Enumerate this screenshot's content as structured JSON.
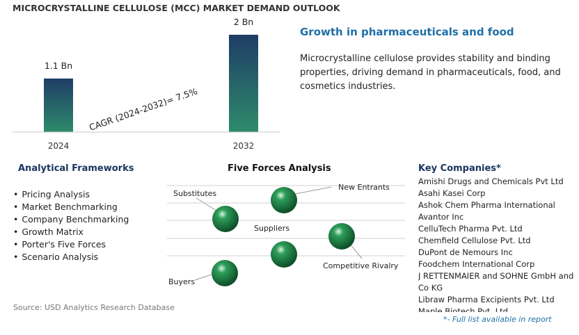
{
  "header": {
    "title": "MICROCRYSTALLINE CELLULOSE (MCC) MARKET DEMAND OUTLOOK"
  },
  "chart_data": {
    "type": "bar",
    "categories": [
      "2024",
      "2032"
    ],
    "values": [
      1.1,
      2
    ],
    "value_labels": [
      "1.1 Bn",
      "2 Bn"
    ],
    "unit": "Bn",
    "annotation": "CAGR (2024-2032)=   7.5%",
    "ylim": [
      0,
      2
    ],
    "grid": false,
    "legend": "none",
    "colors": {
      "bar_top": "#1f3d66",
      "bar_bottom": "#2e8b6b",
      "axis": "#c8c8c8"
    }
  },
  "growth": {
    "title": "Growth in pharmaceuticals and food",
    "description": "Microcrystalline cellulose provides stability and binding properties, driving demand in pharmaceuticals, food, and cosmetics industries."
  },
  "frameworks": {
    "title": "Analytical Frameworks",
    "items": [
      "Pricing Analysis",
      "Market Benchmarking",
      "Company Benchmarking",
      "Growth Matrix",
      "Porter's Five Forces",
      "Scenario Analysis"
    ]
  },
  "five_forces": {
    "title": "Five Forces Analysis",
    "labels": {
      "substitutes": "Substitutes",
      "new_entrants": "New Entrants",
      "suppliers": "Suppliers",
      "competitive_rivalry": "Competitive Rivalry",
      "buyers": "Buyers"
    },
    "sphere_color": "#2e9e5a"
  },
  "companies": {
    "title": "Key Companies*",
    "items": [
      "Amishi Drugs and Chemicals Pvt Ltd",
      "Asahi Kasei Corp",
      "Ashok Chem Pharma International",
      "Avantor Inc",
      "CelluTech Pharma Pvt. Ltd",
      "Chemfield Cellulose Pvt. Ltd",
      "DuPont de Nemours Inc",
      "Foodchem International Corp",
      "J RETTENMAIER and SOHNE GmbH and Co KG",
      "Libraw Pharma Excipients Pvt. Ltd",
      "Maple Biotech Pvt. Ltd"
    ],
    "note": "*- Full list available in report"
  },
  "footer": {
    "source": "Source: USD Analytics Research Database"
  }
}
